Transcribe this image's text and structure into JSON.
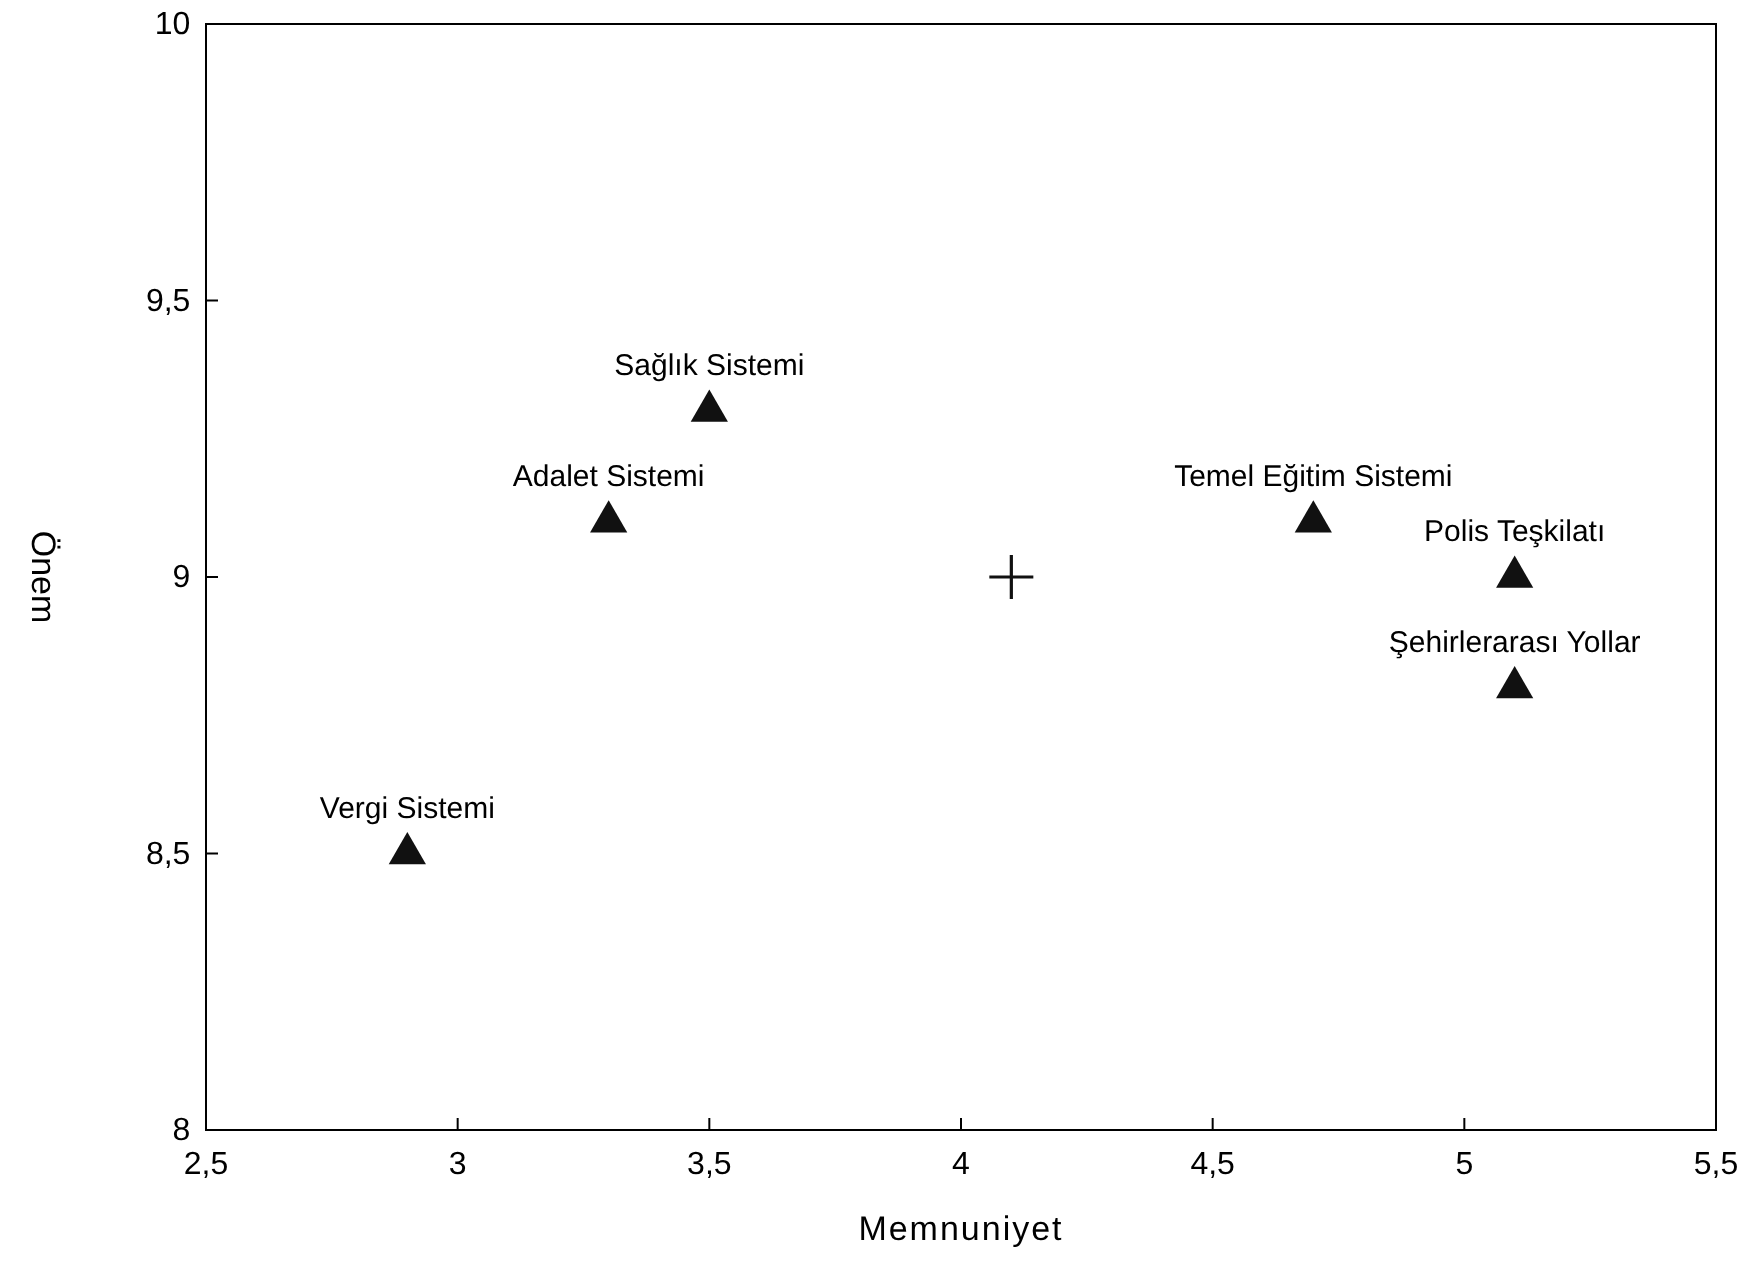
{
  "chart_data": {
    "type": "scatter",
    "xlabel": "Memnuniyet",
    "ylabel": "Önem",
    "xlim": [
      2.5,
      5.5
    ],
    "xticks": [
      {
        "value": 2.5,
        "label": "2,5"
      },
      3,
      {
        "value": 3.5,
        "label": "3,5"
      },
      4,
      {
        "value": 4.5,
        "label": "4,5"
      },
      5,
      {
        "value": 5.5,
        "label": "5,5"
      }
    ],
    "ylim": [
      8,
      10
    ],
    "yticks": [
      8,
      {
        "value": 8.5,
        "label": "8,5"
      },
      9,
      {
        "value": 9.5,
        "label": "9,5"
      },
      10
    ],
    "grid": false,
    "series": [
      {
        "color": "#111111",
        "marker": "triangle",
        "x": [
          2.9,
          3.3,
          3.5,
          4.7,
          5.1,
          5.1
        ],
        "values": [
          8.5,
          9.1,
          9.3,
          9.1,
          9.0,
          8.8
        ]
      },
      {
        "color": "#111111",
        "marker": "cross",
        "x": [
          4.1
        ],
        "values": [
          9.0
        ]
      }
    ],
    "annotations": [
      {
        "text": "Vergi Sistemi",
        "x": 2.9,
        "y": 8.5
      },
      {
        "text": "Adalet Sistemi",
        "x": 3.3,
        "y": 9.1
      },
      {
        "text": "Sağlık Sistemi",
        "x": 3.5,
        "y": 9.3
      },
      {
        "text": "Temel Eğitim Sistemi",
        "x": 4.7,
        "y": 9.1
      },
      {
        "text": "Polis Teşkilatı",
        "x": 5.1,
        "y": 9.0
      },
      {
        "text": "Şehirlerarası Yollar",
        "x": 5.1,
        "y": 8.8
      }
    ]
  }
}
